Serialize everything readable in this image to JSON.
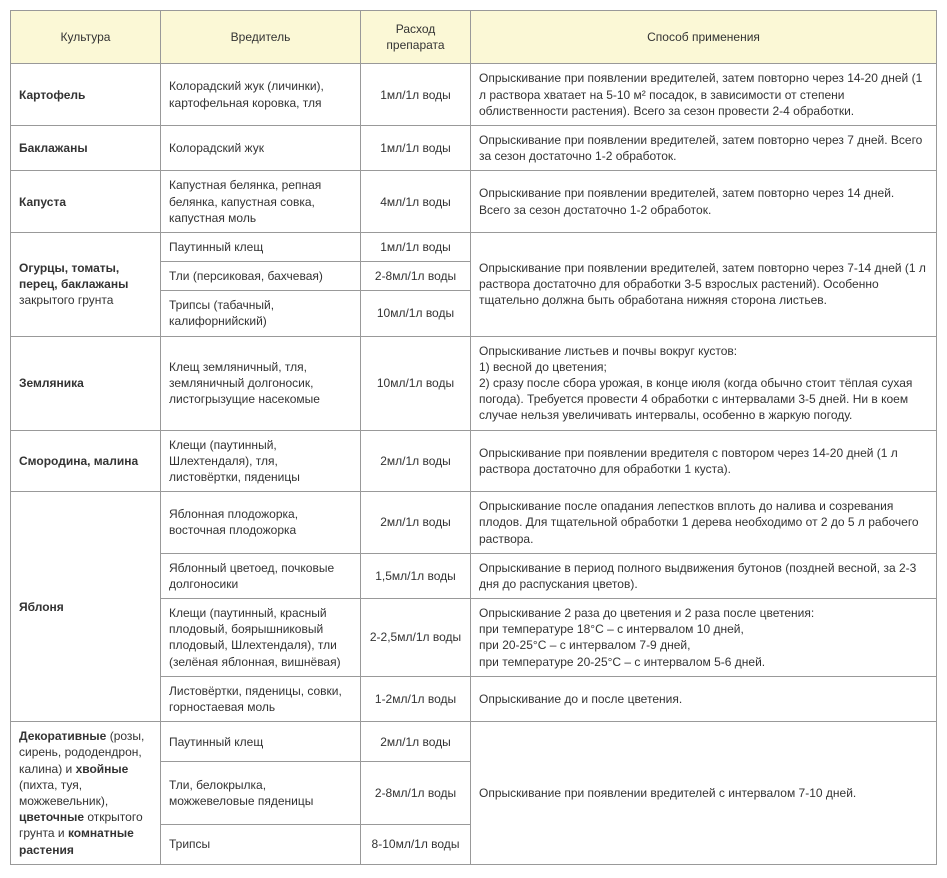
{
  "header_bg": "#fbf8d6",
  "border_color": "#999999",
  "columns": [
    "Культура",
    "Вредитель",
    "Расход препарата",
    "Способ применения"
  ],
  "rows": [
    {
      "culture_html": "<span class='b'>Картофель</span>",
      "pest": "Колорадский жук (личинки), картофельная коровка, тля",
      "dose": "1мл/1л воды",
      "method": "Опрыскивание при появлении вредителей, затем повторно через 14-20 дней (1 л раствора хватает на 5-10 м² посадок, в зависимости от степени облиственности растения). Всего за сезон провести 2-4 обработки."
    },
    {
      "culture_html": "<span class='b'>Баклажаны</span>",
      "pest": "Колорадский жук",
      "dose": "1мл/1л воды",
      "method": "Опрыскивание при появлении вредителей, затем повторно через 7 дней. Всего за сезон достаточно 1-2 обработок."
    },
    {
      "culture_html": "<span class='b'>Капуста</span>",
      "pest": "Капустная белянка, репная белянка, капустная совка, капустная моль",
      "dose": "4мл/1л воды",
      "method": "Опрыскивание при появлении вредителей, затем повторно через 14 дней. Всего за сезон достаточно 1-2 обработок."
    },
    {
      "culture_html": "<span class='b'>Огурцы, томаты, перец, баклажаны</span> закрытого грунта",
      "culture_rowspan": 3,
      "pest": "Паутинный клещ",
      "dose": "1мл/1л воды",
      "method": "Опрыскивание при появлении вредителей, затем повторно через 7-14 дней (1 л раствора достаточно для обработки 3-5 взрослых растений). Особенно тщательно должна быть обработана нижняя сторона листьев.",
      "method_rowspan": 3
    },
    {
      "pest": "Тли (персиковая, бахчевая)",
      "dose": "2-8мл/1л воды"
    },
    {
      "pest": "Трипсы (табачный, калифорнийский)",
      "dose": "10мл/1л воды"
    },
    {
      "culture_html": "<span class='b'>Земляника</span>",
      "pest": "Клещ земляничный, тля, земляничный долгоносик, листогрызущие насекомые",
      "dose": "10мл/1л воды",
      "method": "Опрыскивание листьев и почвы вокруг кустов:\n1) весной до цветения;\n2) сразу после сбора урожая, в конце июля (когда обычно стоит тёплая сухая погода). Требуется провести 4 обработки с интервалами 3-5 дней. Ни в коем случае нельзя увеличивать интервалы, особенно в жаркую погоду."
    },
    {
      "culture_html": "<span class='b'>Смородина, малина</span>",
      "pest": "Клещи (паутинный, Шлехтендаля), тля, листовёртки, пяденицы",
      "dose": "2мл/1л воды",
      "method": "Опрыскивание при появлении вредителя с повтором через 14-20 дней (1 л раствора достаточно для обработки 1 куста)."
    },
    {
      "culture_html": "<span class='b'>Яблоня</span>",
      "culture_rowspan": 4,
      "pest": "Яблонная плодожорка, восточная плодожорка",
      "dose": "2мл/1л воды",
      "method": "Опрыскивание после опадания лепестков вплоть до налива и созревания плодов. Для тщательной обработки 1 дерева необходимо от 2 до 5 л рабочего раствора."
    },
    {
      "pest": "Яблонный цветоед, почковые долгоносики",
      "dose": "1,5мл/1л воды",
      "method": "Опрыскивание в период полного выдвижения бутонов (поздней весной, за 2-3 дня до распускания цветов)."
    },
    {
      "pest": "Клещи (паутинный, красный плодовый, боярышниковый плодовый, Шлехтендаля), тли (зелёная яблонная, вишнёвая)",
      "dose": "2-2,5мл/1л воды",
      "method": "Опрыскивание 2 раза до цветения и 2 раза после цветения:\nпри температуре 18°C – с интервалом 10 дней,\nпри 20-25°C – с интервалом 7-9 дней,\nпри температуре 20-25°C – с интервалом 5-6 дней."
    },
    {
      "pest": "Листовёртки, пяденицы, совки, горностаевая моль",
      "dose": "1-2мл/1л воды",
      "method": "Опрыскивание до и после цветения."
    },
    {
      "culture_html": "<span class='b'>Декоративные</span> (розы, сирень, рододендрон, калина) и <span class='b'>хвойные</span> (пихта, туя, можжевельник), <span class='b'>цветочные</span> открытого грунта и <span class='b'>комнатные растения</span>",
      "culture_rowspan": 3,
      "pest": "Паутинный клещ",
      "dose": "2мл/1л воды",
      "method": "Опрыскивание при появлении вредителей с интервалом 7-10 дней.",
      "method_rowspan": 3
    },
    {
      "pest": "Тли, белокрылка, можжевеловые пяденицы",
      "dose": "2-8мл/1л воды"
    },
    {
      "pest": "Трипсы",
      "dose": "8-10мл/1л воды"
    }
  ]
}
